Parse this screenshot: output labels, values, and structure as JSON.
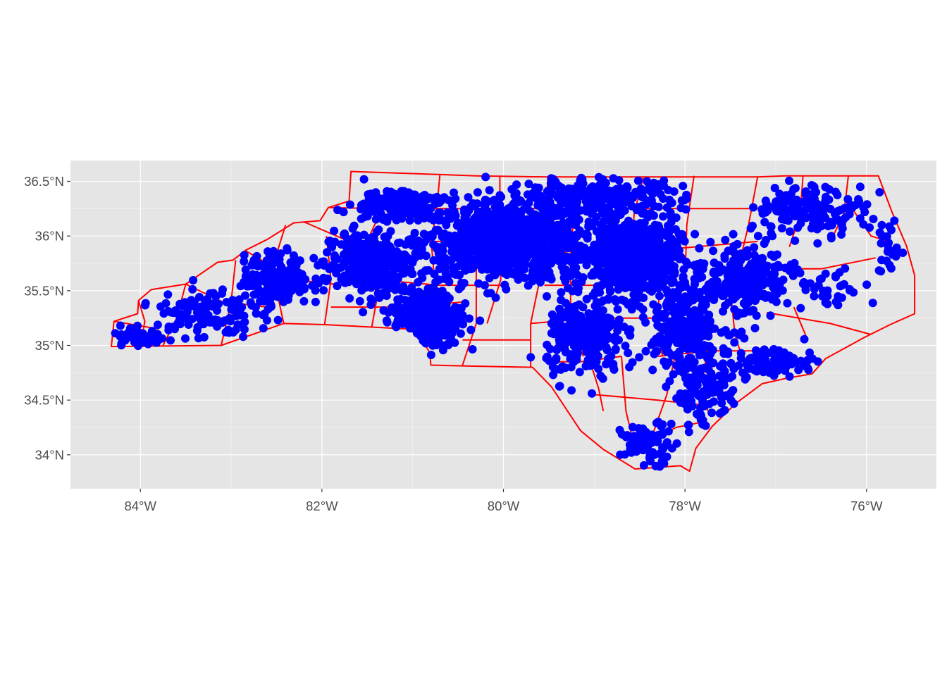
{
  "chart_data": {
    "type": "scatter",
    "title": "",
    "xlabel": "",
    "ylabel": "",
    "xlim": [
      -84.77,
      -75.23
    ],
    "ylim": [
      33.69,
      36.69
    ],
    "x_ticks": [
      {
        "value": -84,
        "label": "84°W"
      },
      {
        "value": -82,
        "label": "82°W"
      },
      {
        "value": -80,
        "label": "80°W"
      },
      {
        "value": -78,
        "label": "78°W"
      },
      {
        "value": -76,
        "label": "76°W"
      }
    ],
    "y_ticks": [
      {
        "value": 34.0,
        "label": "34°N"
      },
      {
        "value": 34.5,
        "label": "34.5°N"
      },
      {
        "value": 35.0,
        "label": "35°N"
      },
      {
        "value": 35.5,
        "label": "35.5°N"
      },
      {
        "value": 36.0,
        "label": "36°N"
      },
      {
        "value": 36.5,
        "label": "36.5°N"
      }
    ],
    "grid": true,
    "legend": "none",
    "colors": {
      "panel": "#e5e5e5",
      "grid": "#ffffff",
      "boundary": "#ff0000",
      "points": "#0000ff",
      "tick_label": "#4d4d4d",
      "tick_mark": "#333333"
    },
    "state_outline": [
      [
        -81.68,
        36.59
      ],
      [
        -80.3,
        36.55
      ],
      [
        -79.51,
        36.54
      ],
      [
        -78.4,
        36.54
      ],
      [
        -77.2,
        36.54
      ],
      [
        -76.9,
        36.55
      ],
      [
        -75.87,
        36.55
      ],
      [
        -75.72,
        36.22
      ],
      [
        -75.56,
        35.91
      ],
      [
        -75.47,
        35.64
      ],
      [
        -75.47,
        35.29
      ],
      [
        -75.74,
        35.19
      ],
      [
        -76.03,
        35.07
      ],
      [
        -76.45,
        34.88
      ],
      [
        -76.6,
        34.74
      ],
      [
        -76.88,
        34.7
      ],
      [
        -77.15,
        34.65
      ],
      [
        -77.44,
        34.47
      ],
      [
        -77.7,
        34.26
      ],
      [
        -77.88,
        34.06
      ],
      [
        -77.95,
        33.85
      ],
      [
        -78.05,
        33.9
      ],
      [
        -78.55,
        33.87
      ],
      [
        -78.9,
        34.05
      ],
      [
        -79.15,
        34.22
      ],
      [
        -79.47,
        34.62
      ],
      [
        -79.68,
        34.8
      ],
      [
        -80.32,
        34.81
      ],
      [
        -80.8,
        34.82
      ],
      [
        -80.81,
        34.93
      ],
      [
        -80.93,
        35.1
      ],
      [
        -81.04,
        35.15
      ],
      [
        -81.97,
        35.19
      ],
      [
        -82.42,
        35.2
      ],
      [
        -83.11,
        35.0
      ],
      [
        -84.32,
        34.99
      ],
      [
        -84.29,
        35.22
      ],
      [
        -84.03,
        35.29
      ],
      [
        -84.02,
        35.41
      ],
      [
        -83.88,
        35.51
      ],
      [
        -83.5,
        35.56
      ],
      [
        -83.15,
        35.76
      ],
      [
        -82.98,
        35.78
      ],
      [
        -82.84,
        35.87
      ],
      [
        -82.6,
        35.97
      ],
      [
        -82.31,
        36.12
      ],
      [
        -82.02,
        36.14
      ],
      [
        -81.93,
        36.26
      ],
      [
        -81.7,
        36.32
      ],
      [
        -81.68,
        36.59
      ]
    ],
    "county_lines": [
      [
        [
          -80.7,
          36.56
        ],
        [
          -80.74,
          36.2
        ],
        [
          -80.8,
          35.95
        ]
      ],
      [
        [
          -79.51,
          36.54
        ],
        [
          -79.53,
          36.24
        ],
        [
          -79.56,
          35.9
        ]
      ],
      [
        [
          -79.14,
          36.55
        ],
        [
          -79.25,
          36.0
        ]
      ],
      [
        [
          -78.46,
          36.54
        ],
        [
          -78.56,
          36.2
        ],
        [
          -78.6,
          35.78
        ]
      ],
      [
        [
          -77.9,
          36.55
        ],
        [
          -77.98,
          36.1
        ],
        [
          -78.0,
          35.6
        ]
      ],
      [
        [
          -77.2,
          36.54
        ],
        [
          -77.3,
          36.1
        ],
        [
          -77.4,
          35.75
        ]
      ],
      [
        [
          -76.7,
          36.55
        ],
        [
          -76.73,
          36.2
        ],
        [
          -76.85,
          35.9
        ]
      ],
      [
        [
          -76.2,
          36.55
        ],
        [
          -76.25,
          36.2
        ],
        [
          -76.4,
          35.95
        ]
      ],
      [
        [
          -76.2,
          36.3
        ],
        [
          -75.95,
          36.0
        ],
        [
          -75.75,
          35.95
        ]
      ],
      [
        [
          -81.25,
          36.38
        ],
        [
          -81.42,
          36.1
        ],
        [
          -81.53,
          35.9
        ]
      ],
      [
        [
          -80.04,
          36.55
        ],
        [
          -80.03,
          35.6
        ],
        [
          -80.18,
          35.2
        ]
      ],
      [
        [
          -79.26,
          36.1
        ],
        [
          -79.26,
          35.2
        ],
        [
          -79.12,
          34.9
        ]
      ],
      [
        [
          -78.25,
          35.8
        ],
        [
          -78.3,
          35.3
        ],
        [
          -78.25,
          34.9
        ]
      ],
      [
        [
          -77.5,
          35.5
        ],
        [
          -77.45,
          35.1
        ],
        [
          -77.3,
          34.7
        ]
      ],
      [
        [
          -76.8,
          35.35
        ],
        [
          -76.65,
          35.05
        ]
      ],
      [
        [
          -76.97,
          35.7
        ],
        [
          -76.5,
          35.7
        ],
        [
          -75.9,
          35.8
        ]
      ],
      [
        [
          -77.1,
          35.3
        ],
        [
          -76.4,
          35.2
        ],
        [
          -75.95,
          35.1
        ]
      ],
      [
        [
          -77.75,
          35.0
        ],
        [
          -77.8,
          34.7
        ],
        [
          -77.75,
          34.4
        ]
      ],
      [
        [
          -78.1,
          34.95
        ],
        [
          -78.2,
          34.55
        ],
        [
          -78.35,
          34.2
        ]
      ],
      [
        [
          -78.7,
          34.9
        ],
        [
          -78.65,
          34.4
        ],
        [
          -78.55,
          34.05
        ]
      ],
      [
        [
          -79.1,
          35.0
        ],
        [
          -78.95,
          34.6
        ],
        [
          -78.9,
          34.4
        ]
      ],
      [
        [
          -79.6,
          35.6
        ],
        [
          -79.7,
          35.2
        ],
        [
          -79.7,
          34.8
        ]
      ],
      [
        [
          -80.3,
          35.9
        ],
        [
          -80.3,
          35.2
        ],
        [
          -80.45,
          34.82
        ]
      ],
      [
        [
          -80.8,
          36.0
        ],
        [
          -80.75,
          35.5
        ],
        [
          -80.9,
          35.05
        ]
      ],
      [
        [
          -81.45,
          35.9
        ],
        [
          -81.4,
          35.4
        ],
        [
          -81.45,
          35.17
        ]
      ],
      [
        [
          -81.95,
          36.0
        ],
        [
          -81.9,
          35.6
        ],
        [
          -81.97,
          35.19
        ]
      ],
      [
        [
          -82.4,
          36.1
        ],
        [
          -82.55,
          35.7
        ],
        [
          -82.42,
          35.2
        ]
      ],
      [
        [
          -82.95,
          35.78
        ],
        [
          -83.0,
          35.4
        ],
        [
          -83.11,
          35.0
        ]
      ],
      [
        [
          -83.5,
          35.56
        ],
        [
          -83.6,
          35.25
        ],
        [
          -83.75,
          35.0
        ]
      ],
      [
        [
          -84.02,
          35.41
        ],
        [
          -83.95,
          35.22
        ],
        [
          -84.0,
          35.0
        ]
      ],
      [
        [
          -84.29,
          35.22
        ],
        [
          -83.8,
          35.15
        ]
      ],
      [
        [
          -83.5,
          35.56
        ],
        [
          -83.1,
          35.4
        ],
        [
          -82.6,
          35.35
        ]
      ],
      [
        [
          -82.85,
          35.87
        ],
        [
          -82.3,
          35.6
        ],
        [
          -81.75,
          35.55
        ]
      ],
      [
        [
          -82.2,
          36.13
        ],
        [
          -81.7,
          35.95
        ],
        [
          -81.2,
          35.85
        ]
      ],
      [
        [
          -81.93,
          36.26
        ],
        [
          -81.35,
          36.25
        ],
        [
          -80.8,
          36.25
        ]
      ],
      [
        [
          -81.4,
          35.6
        ],
        [
          -80.7,
          35.55
        ],
        [
          -80.0,
          35.55
        ]
      ],
      [
        [
          -81.9,
          35.35
        ],
        [
          -81.1,
          35.35
        ],
        [
          -80.4,
          35.4
        ]
      ],
      [
        [
          -80.8,
          36.25
        ],
        [
          -80.0,
          36.25
        ],
        [
          -79.3,
          36.25
        ]
      ],
      [
        [
          -80.75,
          35.95
        ],
        [
          -80.0,
          35.95
        ],
        [
          -79.3,
          35.85
        ]
      ],
      [
        [
          -79.55,
          35.55
        ],
        [
          -78.9,
          35.55
        ],
        [
          -78.25,
          35.55
        ]
      ],
      [
        [
          -79.7,
          35.2
        ],
        [
          -79.0,
          35.25
        ],
        [
          -78.3,
          35.25
        ]
      ],
      [
        [
          -78.6,
          36.25
        ],
        [
          -77.9,
          36.25
        ],
        [
          -77.2,
          36.25
        ]
      ],
      [
        [
          -78.6,
          35.85
        ],
        [
          -77.9,
          35.9
        ],
        [
          -77.2,
          35.95
        ]
      ],
      [
        [
          -78.3,
          34.9
        ],
        [
          -77.7,
          34.95
        ],
        [
          -77.1,
          34.95
        ]
      ],
      [
        [
          -79.0,
          34.55
        ],
        [
          -78.3,
          34.5
        ],
        [
          -77.75,
          34.45
        ]
      ],
      [
        [
          -78.55,
          34.05
        ],
        [
          -78.1,
          34.25
        ],
        [
          -77.8,
          34.3
        ]
      ],
      [
        [
          -79.45,
          34.85
        ],
        [
          -79.15,
          34.85
        ],
        [
          -78.7,
          34.9
        ]
      ],
      [
        [
          -80.45,
          35.05
        ],
        [
          -80.05,
          35.05
        ],
        [
          -79.7,
          35.05
        ]
      ]
    ],
    "point_density_regions": [
      {
        "lon": -80.0,
        "lat": 35.95,
        "spread": [
          0.75,
          0.3
        ],
        "count": 900
      },
      {
        "lon": -78.6,
        "lat": 35.8,
        "spread": [
          0.45,
          0.3
        ],
        "count": 650
      },
      {
        "lon": -80.85,
        "lat": 35.25,
        "spread": [
          0.3,
          0.22
        ],
        "count": 420
      },
      {
        "lon": -81.5,
        "lat": 35.75,
        "spread": [
          0.4,
          0.25
        ],
        "count": 300
      },
      {
        "lon": -82.5,
        "lat": 35.6,
        "spread": [
          0.3,
          0.2
        ],
        "count": 220
      },
      {
        "lon": -83.3,
        "lat": 35.3,
        "spread": [
          0.45,
          0.2
        ],
        "count": 120
      },
      {
        "lon": -84.0,
        "lat": 35.08,
        "spread": [
          0.25,
          0.08
        ],
        "count": 45
      },
      {
        "lon": -79.1,
        "lat": 35.05,
        "spread": [
          0.35,
          0.3
        ],
        "count": 250
      },
      {
        "lon": -78.0,
        "lat": 35.2,
        "spread": [
          0.4,
          0.3
        ],
        "count": 250
      },
      {
        "lon": -77.3,
        "lat": 35.6,
        "spread": [
          0.4,
          0.3
        ],
        "count": 230
      },
      {
        "lon": -77.8,
        "lat": 34.6,
        "spread": [
          0.3,
          0.3
        ],
        "count": 140
      },
      {
        "lon": -78.4,
        "lat": 34.1,
        "spread": [
          0.25,
          0.15
        ],
        "count": 80
      },
      {
        "lon": -77.0,
        "lat": 34.85,
        "spread": [
          0.4,
          0.1
        ],
        "count": 90
      },
      {
        "lon": -76.6,
        "lat": 36.25,
        "spread": [
          0.5,
          0.18
        ],
        "count": 150
      },
      {
        "lon": -75.75,
        "lat": 35.85,
        "spread": [
          0.12,
          0.25
        ],
        "count": 25
      },
      {
        "lon": -81.2,
        "lat": 36.3,
        "spread": [
          0.45,
          0.12
        ],
        "count": 150
      },
      {
        "lon": -79.0,
        "lat": 36.35,
        "spread": [
          0.8,
          0.15
        ],
        "count": 260
      },
      {
        "lon": -76.4,
        "lat": 35.55,
        "spread": [
          0.4,
          0.15
        ],
        "count": 35
      }
    ]
  }
}
